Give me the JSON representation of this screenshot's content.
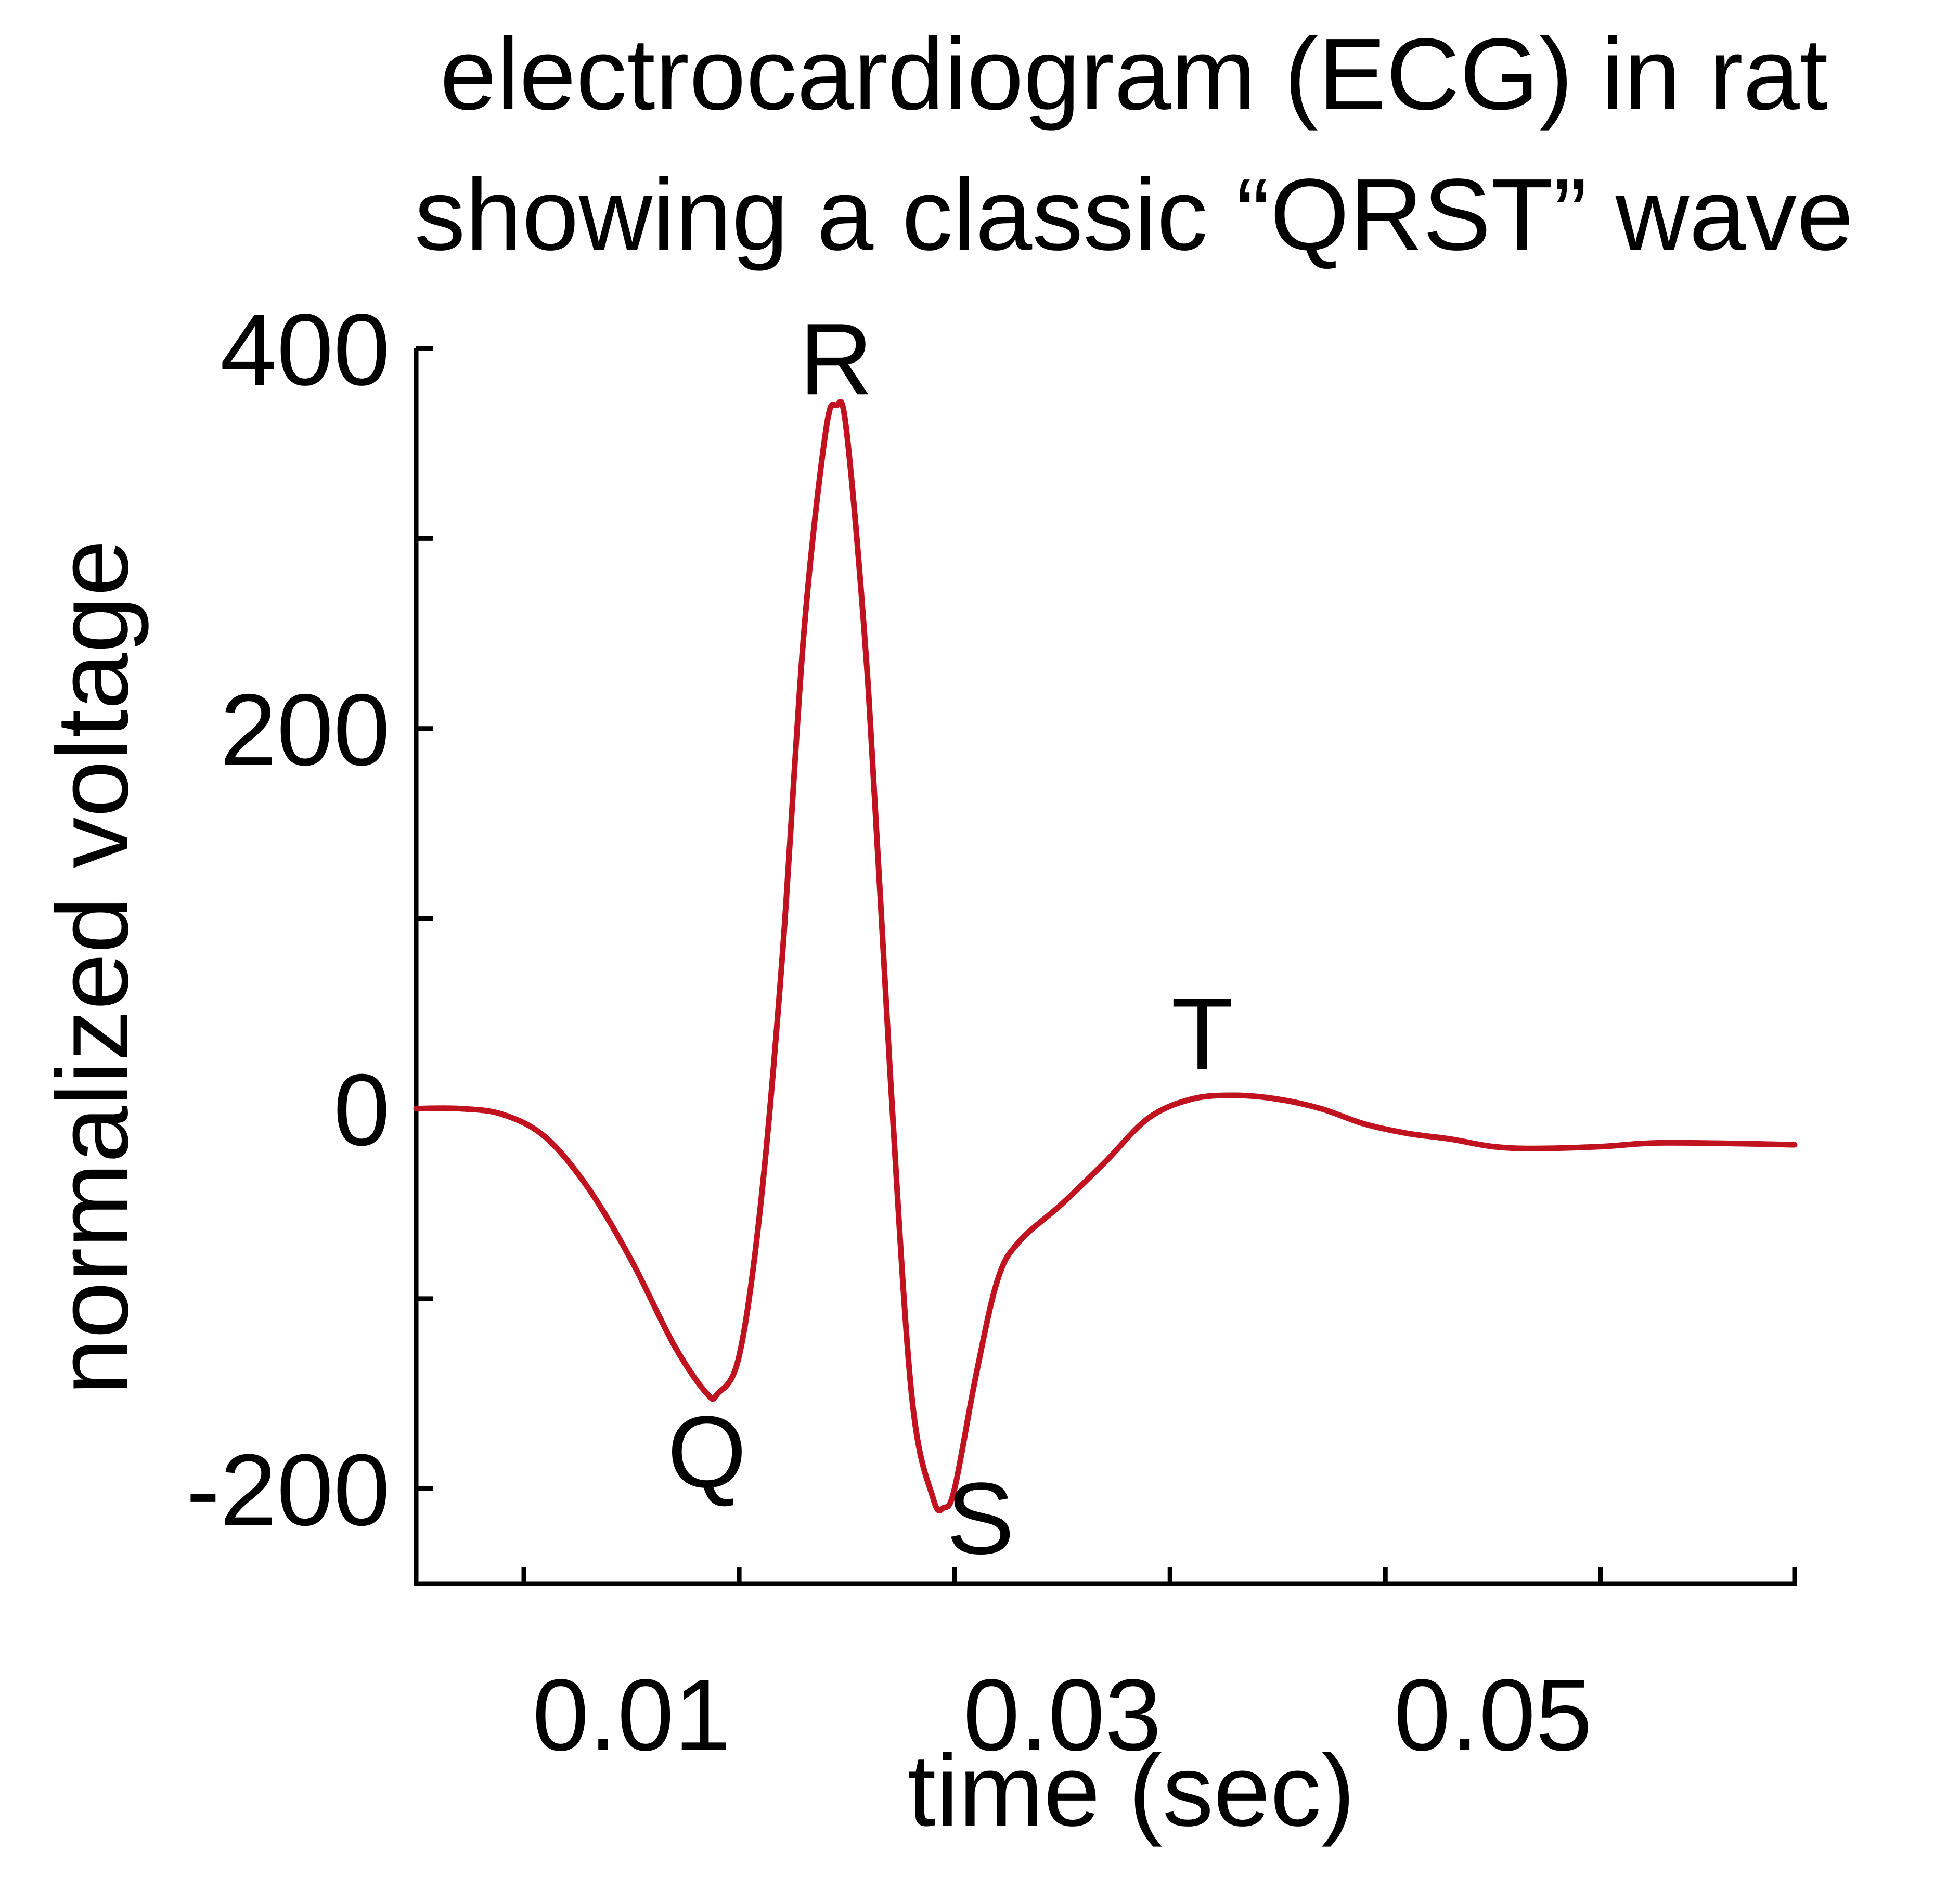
{
  "chart_data": {
    "type": "line",
    "title": [
      "electrocardiogram (ECG) in rat",
      "showing a classic “QRST” wave"
    ],
    "xlabel": "time (sec)",
    "ylabel": "normalized voltage",
    "xlim": [
      0,
      0.064
    ],
    "ylim": [
      -250,
      400
    ],
    "x_ticks": [
      0.005,
      0.015,
      0.025,
      0.035,
      0.045,
      0.055,
      0.064
    ],
    "x_tick_labels": [
      {
        "value": 0.01,
        "label": "0.01"
      },
      {
        "value": 0.03,
        "label": "0.03"
      },
      {
        "value": 0.05,
        "label": "0.05"
      }
    ],
    "y_ticks": [
      400,
      300,
      200,
      100,
      0,
      -100,
      -200
    ],
    "y_tick_labels": [
      {
        "value": 400,
        "label": "400"
      },
      {
        "value": 200,
        "label": "200"
      },
      {
        "value": 0,
        "label": "0"
      },
      {
        "value": -200,
        "label": "-200"
      }
    ],
    "grid": false,
    "series": [
      {
        "color": "#c1121f",
        "points": [
          [
            0.0,
            0
          ],
          [
            0.002,
            0
          ],
          [
            0.004,
            -3
          ],
          [
            0.006,
            -15
          ],
          [
            0.008,
            -42
          ],
          [
            0.01,
            -80
          ],
          [
            0.012,
            -125
          ],
          [
            0.0135,
            -150
          ],
          [
            0.014,
            -150
          ],
          [
            0.015,
            -130
          ],
          [
            0.016,
            -50
          ],
          [
            0.017,
            80
          ],
          [
            0.018,
            250
          ],
          [
            0.019,
            355
          ],
          [
            0.0195,
            370
          ],
          [
            0.02,
            355
          ],
          [
            0.021,
            220
          ],
          [
            0.022,
            20
          ],
          [
            0.023,
            -150
          ],
          [
            0.024,
            -205
          ],
          [
            0.0245,
            -210
          ],
          [
            0.025,
            -200
          ],
          [
            0.026,
            -140
          ],
          [
            0.027,
            -90
          ],
          [
            0.028,
            -70
          ],
          [
            0.03,
            -50
          ],
          [
            0.032,
            -28
          ],
          [
            0.034,
            -5
          ],
          [
            0.036,
            5
          ],
          [
            0.038,
            7
          ],
          [
            0.04,
            5
          ],
          [
            0.042,
            0
          ],
          [
            0.044,
            -8
          ],
          [
            0.046,
            -13
          ],
          [
            0.048,
            -16
          ],
          [
            0.05,
            -20
          ],
          [
            0.052,
            -21
          ],
          [
            0.055,
            -20
          ],
          [
            0.058,
            -18
          ],
          [
            0.064,
            -19
          ]
        ]
      }
    ],
    "annotations": [
      {
        "text": "R",
        "x": 0.0195,
        "y": 395
      },
      {
        "text": "Q",
        "x": 0.0135,
        "y": -180
      },
      {
        "text": "S",
        "x": 0.0262,
        "y": -215
      },
      {
        "text": "T",
        "x": 0.0365,
        "y": 40
      }
    ]
  }
}
